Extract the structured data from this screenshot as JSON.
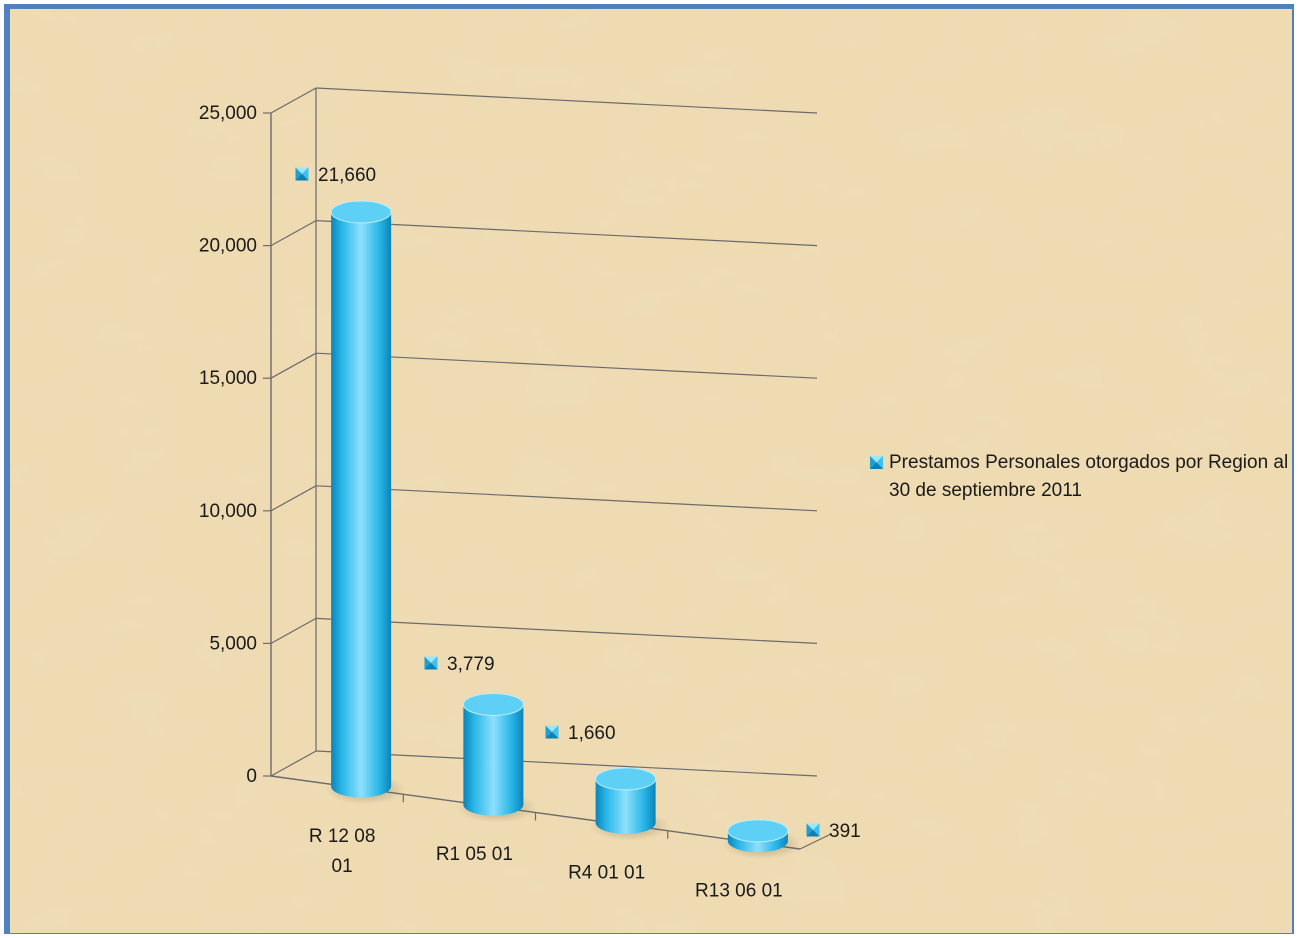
{
  "chart_data": {
    "type": "bar",
    "style": "3d-cylinder",
    "categories": [
      "R 12 08\n01",
      "R1 05 01",
      "R4 01 01",
      "R13 06 01"
    ],
    "series": [
      {
        "name": "Prestamos Personales otorgados por Region al 30 de septiembre 2011",
        "values": [
          21660,
          3779,
          1660,
          391
        ]
      }
    ],
    "data_labels": [
      "21,660",
      "3,779",
      "1,660",
      "391"
    ],
    "y_ticks": [
      "25,000",
      "20,000",
      "15,000",
      "10,000",
      "5,000",
      "0"
    ],
    "ylim": [
      0,
      25000
    ],
    "title": "",
    "xlabel": "",
    "ylabel": "",
    "grid": true,
    "legend_position": "right",
    "colors": {
      "bar": "#29b6e8",
      "bar_dark": "#0b84b8",
      "bar_light": "#8ee0fb",
      "frame": "#4f81bd",
      "gridline": "#6b6b6b",
      "background": "#efdbb0"
    }
  }
}
